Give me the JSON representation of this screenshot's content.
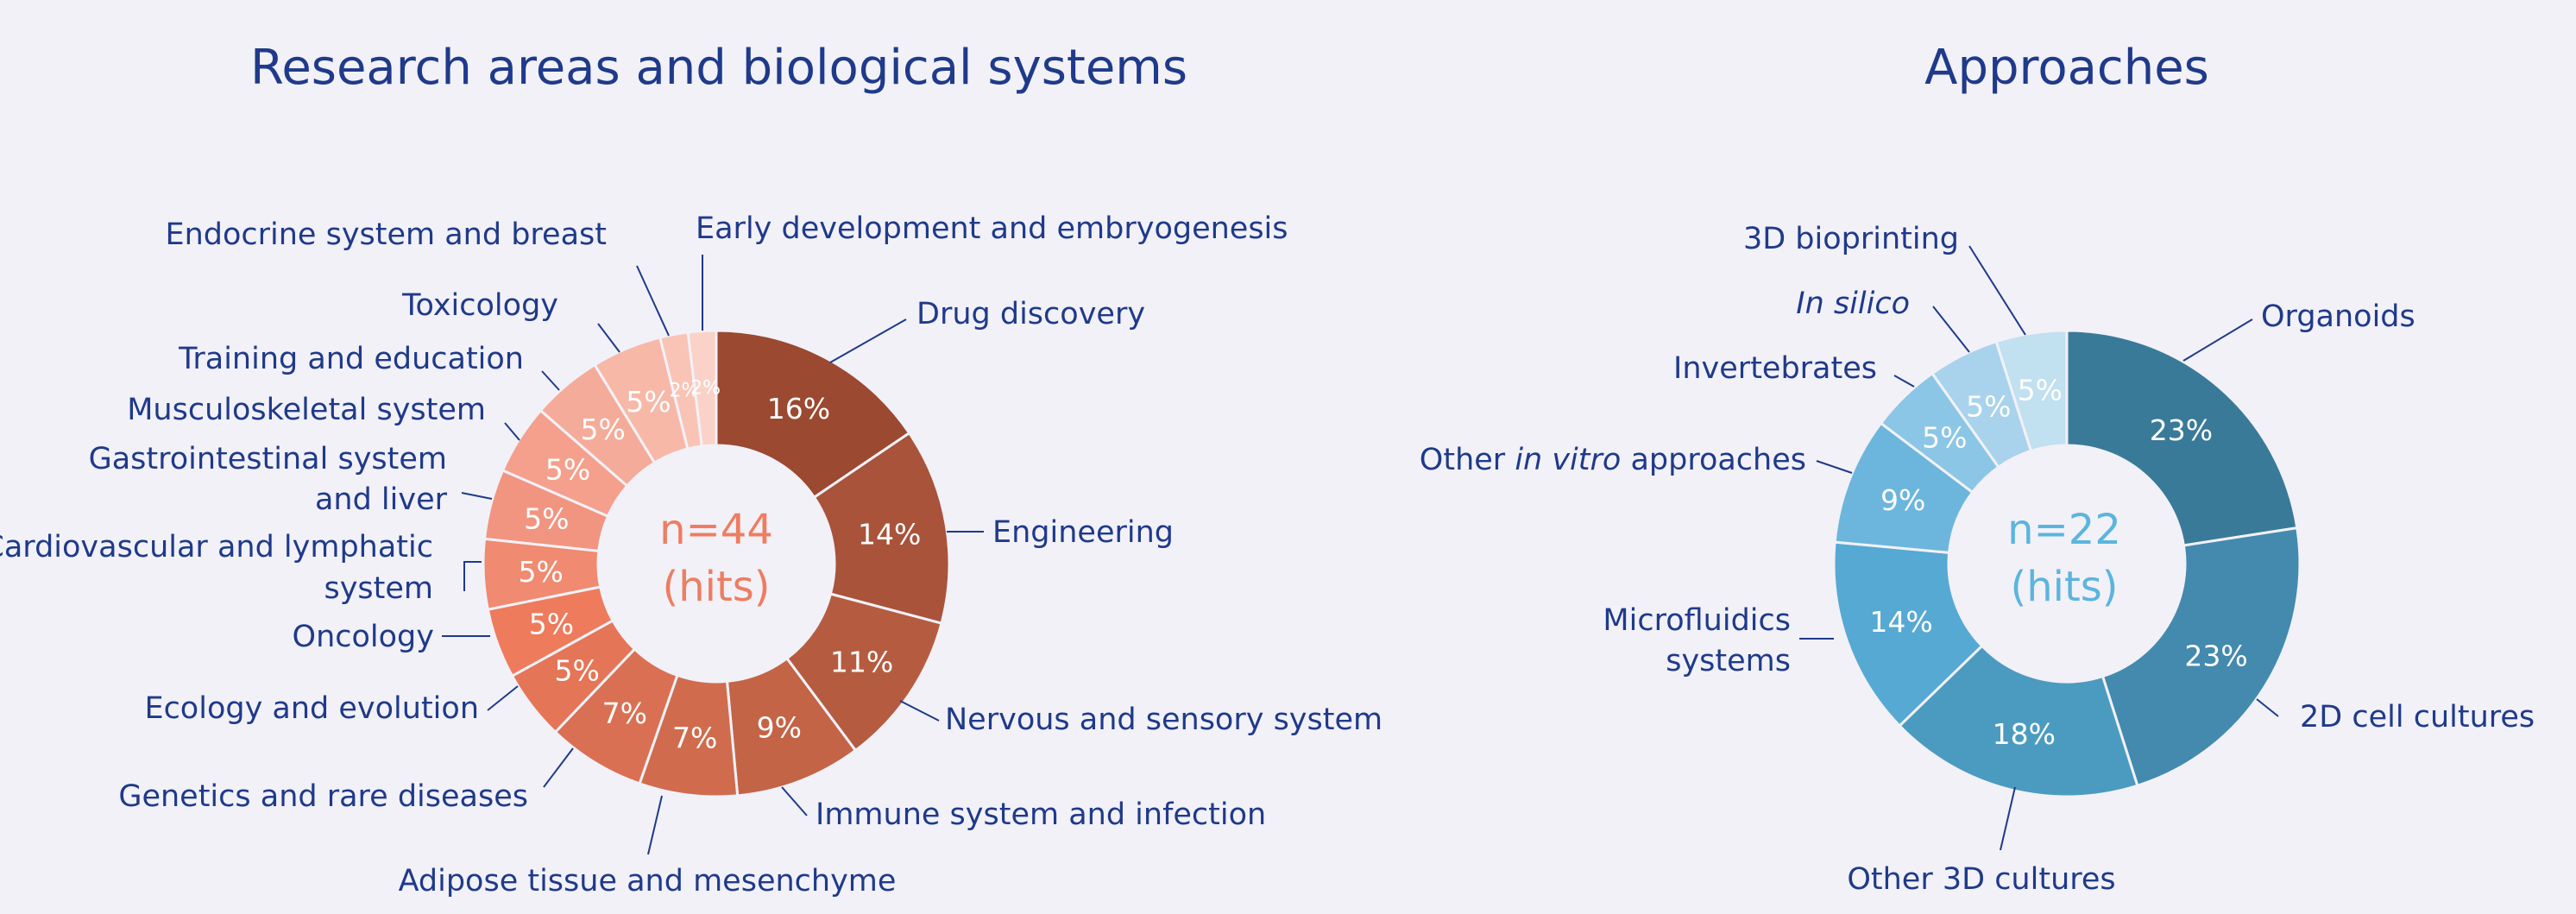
{
  "chart_data": [
    {
      "type": "pie",
      "title": "Research areas and biological systems",
      "center_label": [
        "n=44",
        "(hits)"
      ],
      "donut": true,
      "categories": [
        "Drug discovery",
        "Engineering",
        "Nervous and sensory system",
        "Immune system and infection",
        "Adipose tissue and mesenchyme",
        "Genetics and rare diseases",
        "Ecology and evolution",
        "Oncology",
        "Cardiovascular and lymphatic system",
        "Gastrointestinal system and liver",
        "Musculoskeletal system",
        "Training and education",
        "Toxicology",
        "Endocrine system and breast",
        "Early development and embryogenesis"
      ],
      "values": [
        16,
        14,
        11,
        9,
        7,
        7,
        5,
        5,
        5,
        5,
        5,
        5,
        5,
        2,
        2
      ],
      "value_labels": [
        "16%",
        "14%",
        "11%",
        "9%",
        "7%",
        "7%",
        "5%",
        "5%",
        "5%",
        "5%",
        "5%",
        "5%",
        "5%",
        "2%",
        "2%"
      ],
      "colors": [
        "#9b4930",
        "#a8533a",
        "#b55c40",
        "#c46446",
        "#d06c4d",
        "#da7053",
        "#e57557",
        "#ee7b5c",
        "#f08a70",
        "#f29580",
        "#f4a08c",
        "#f5ab99",
        "#f7b8a8",
        "#f9c4b6",
        "#fad2c8"
      ]
    },
    {
      "type": "pie",
      "title": "Approaches",
      "center_label": [
        "n=22",
        "(hits)"
      ],
      "donut": true,
      "categories": [
        "Organoids",
        "2D cell cultures",
        "Other 3D cultures",
        "Microfluidics systems",
        "Other in vitro approaches",
        "Invertebrates",
        "In silico",
        "3D bioprinting"
      ],
      "values": [
        23,
        23,
        18,
        14,
        9,
        5,
        5,
        5
      ],
      "value_labels": [
        "23%",
        "23%",
        "18%",
        "14%",
        "9%",
        "5%",
        "5%",
        "5%"
      ],
      "colors": [
        "#3a7a99",
        "#438aae",
        "#4b9bc1",
        "#56a9d3",
        "#6cb6dd",
        "#8cc6e6",
        "#a9d3ec",
        "#c1e0f0"
      ]
    }
  ],
  "labels_left": {
    "drug": "Drug discovery",
    "eng": "Engineering",
    "nerv": "Nervous and sensory system",
    "imm": "Immune system and infection",
    "adi": "Adipose tissue and mesenchyme",
    "gen": "Genetics and rare diseases",
    "eco": "Ecology and evolution",
    "onc": "Oncology",
    "card1": "Cardiovascular and lymphatic",
    "card2": "system",
    "gas1": "Gastrointestinal system",
    "gas2": "and liver",
    "mus": "Musculoskeletal system",
    "tra": "Training and education",
    "tox": "Toxicology",
    "endo": "Endocrine system and breast",
    "early": "Early development and embryogenesis"
  },
  "labels_right": {
    "org": "Organoids",
    "cult2d": "2D cell cultures",
    "oth3d": "Other 3D cultures",
    "micro1": "Microfluidics",
    "micro2": "systems",
    "oiv_a": "Other ",
    "oiv_b": "in vitro",
    "oiv_c": " approaches",
    "inv": "Invertebrates",
    "insilico": "In silico",
    "bio": "3D bioprinting"
  }
}
